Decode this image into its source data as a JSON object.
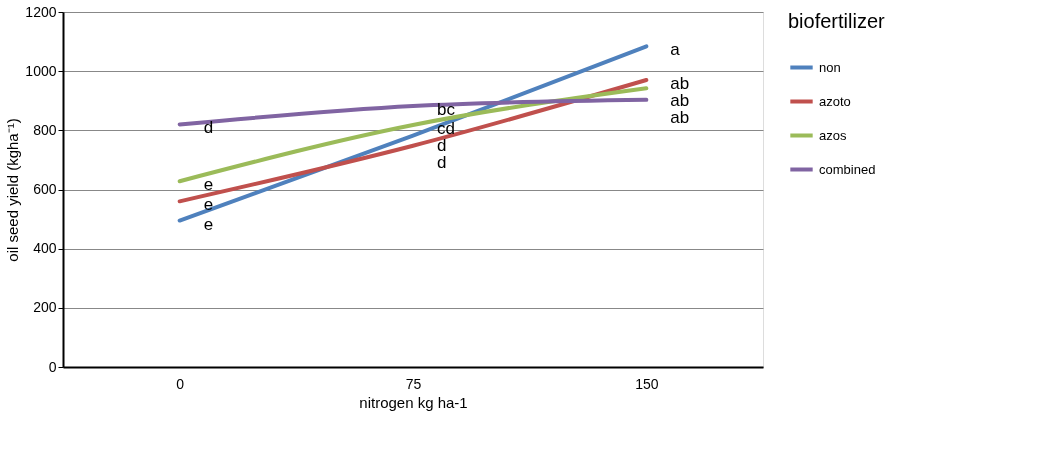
{
  "chart_data": {
    "type": "line",
    "xlabel": "nitrogen kg ha-1",
    "ylabel": "oil seed yield (kgha⁻¹)",
    "legend_title": "biofertilizer",
    "categories": [
      "0",
      "75",
      "150"
    ],
    "series": [
      {
        "name": "non",
        "color": "#4f81bd",
        "values": [
          495,
          782,
          1084
        ]
      },
      {
        "name": "azoto",
        "color": "#c0504d",
        "values": [
          560,
          748,
          970
        ]
      },
      {
        "name": "azos",
        "color": "#9bbb59",
        "values": [
          628,
          818,
          942
        ]
      },
      {
        "name": "combined",
        "color": "#8064a2",
        "values": [
          820,
          882,
          903
        ]
      }
    ],
    "ylim": [
      0,
      1200
    ],
    "yticks": [
      0,
      200,
      400,
      600,
      800,
      1000,
      1200
    ],
    "grid": "y",
    "legend": "right",
    "marker": "none",
    "line_style": "solid",
    "annotations": [
      {
        "text": "d",
        "x": "0",
        "y": 820
      },
      {
        "text": "e",
        "x": "0",
        "y": 628
      },
      {
        "text": "e",
        "x": "0",
        "y": 560
      },
      {
        "text": "e",
        "x": "0",
        "y": 495
      },
      {
        "text": "bc",
        "x": "75",
        "y": 882
      },
      {
        "text": "cd",
        "x": "75",
        "y": 818
      },
      {
        "text": "d",
        "x": "75",
        "y": 782
      },
      {
        "text": "d",
        "x": "75",
        "y": 748
      },
      {
        "text": "a",
        "x": "150",
        "y": 1084
      },
      {
        "text": "ab",
        "x": "150",
        "y": 970
      },
      {
        "text": "ab",
        "x": "150",
        "y": 942
      },
      {
        "text": "ab",
        "x": "150",
        "y": 903
      }
    ]
  }
}
